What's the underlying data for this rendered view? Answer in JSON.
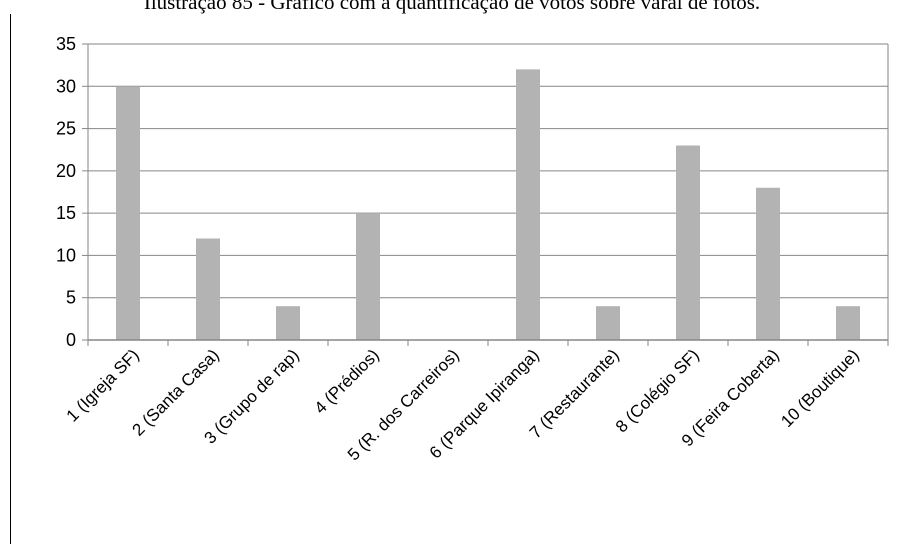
{
  "caption": "Ilustração 85 - Gráfico com a quantificação de votos sobre varal de fotos.",
  "chart_data": {
    "type": "bar",
    "title": "",
    "xlabel": "",
    "ylabel": "",
    "ylim": [
      0,
      35
    ],
    "yticks": [
      0,
      5,
      10,
      15,
      20,
      25,
      30,
      35
    ],
    "grid": true,
    "categories": [
      "1 (Igreja SF)",
      "2 (Santa Casa)",
      "3 (Grupo de rap)",
      "4 (Prédios)",
      "5 (R. dos Carreiros)",
      "6 (Parque Ipiranga)",
      "7 (Restaurante)",
      "8 (Colégio SF)",
      "9 (Feira Coberta)",
      "10 (Boutique)"
    ],
    "values": [
      30,
      12,
      4,
      15,
      0,
      32,
      4,
      23,
      18,
      4
    ],
    "colors": {
      "bar": "#b3b3b3",
      "grid": "#868686",
      "axis": "#868686"
    }
  }
}
